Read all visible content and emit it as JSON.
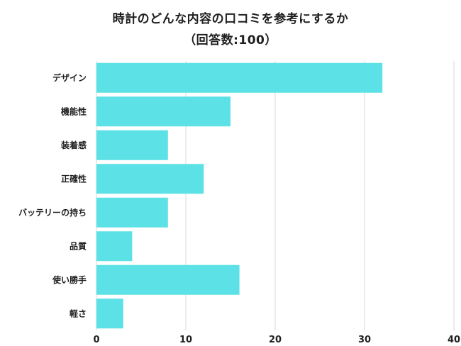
{
  "chart_data": {
    "type": "bar",
    "orientation": "horizontal",
    "title": "時計のどんな内容の口コミを参考にするか",
    "subtitle": "（回答数:100）",
    "categories": [
      "デザイン",
      "機能性",
      "装着感",
      "正確性",
      "バッテリーの持ち",
      "品質",
      "使い勝手",
      "軽さ"
    ],
    "values": [
      32,
      15,
      8,
      12,
      8,
      4,
      16,
      3
    ],
    "xlim": [
      0,
      40
    ],
    "xticks": [
      0,
      10,
      20,
      30,
      40
    ],
    "xlabel": "",
    "ylabel": "",
    "grid": "vertical",
    "legend": "none",
    "colors": {
      "bar": "#5ce1e6",
      "grid": "#d9d9d9",
      "text": "#1f1f1f"
    }
  }
}
